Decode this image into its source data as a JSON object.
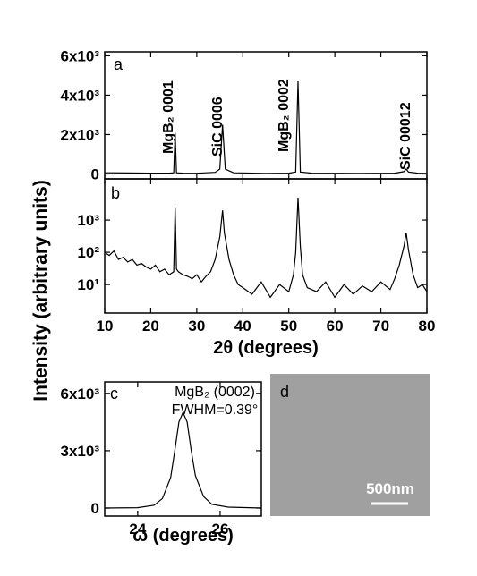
{
  "chart_data": [
    {
      "type": "line",
      "label": "a",
      "ylabel": "Intensity (arbitrary units)",
      "color": "#000000",
      "annotations": [
        "MgB₂ 0001",
        "SiC 0006",
        "MgB₂ 0002",
        "SiC 00012"
      ],
      "x": [
        10,
        15,
        20,
        24,
        25,
        25.3,
        25.6,
        27,
        30,
        34,
        35,
        35.6,
        36.2,
        38,
        45,
        50,
        51.5,
        52,
        52.5,
        55,
        65,
        73,
        75,
        75.5,
        76,
        78,
        80
      ],
      "values": [
        60,
        50,
        40,
        40,
        60,
        2100,
        60,
        40,
        35,
        80,
        250,
        2500,
        250,
        60,
        30,
        40,
        100,
        4700,
        100,
        40,
        30,
        40,
        120,
        250,
        100,
        40,
        30
      ],
      "xlim": [
        10,
        80
      ],
      "xticks": [
        10,
        20,
        30,
        40,
        50,
        60,
        70,
        80
      ],
      "ylim": [
        -250,
        6200
      ],
      "yticks": [
        0,
        {
          "value": 2000,
          "label": "2x10³"
        },
        {
          "value": 4000,
          "label": "4x10³"
        },
        {
          "value": 6000,
          "label": "6x10³"
        }
      ]
    },
    {
      "type": "line",
      "label": "b",
      "xlabel": "2θ (degrees)",
      "color": "#000000",
      "yscale": "log",
      "x": [
        10,
        11,
        12,
        13,
        14,
        15,
        16,
        17,
        18,
        19,
        20,
        21,
        22,
        23,
        24,
        25,
        25.3,
        25.6,
        26,
        27,
        28,
        29,
        30,
        31,
        32,
        33,
        34,
        35,
        35.6,
        36,
        37,
        38,
        39,
        40,
        42,
        44,
        46,
        48,
        50,
        51,
        51.5,
        52,
        52.5,
        53,
        54,
        56,
        58,
        60,
        62,
        64,
        66,
        68,
        70,
        72,
        73,
        74,
        75,
        75.5,
        76,
        77,
        78,
        79,
        80
      ],
      "values": [
        100,
        80,
        110,
        60,
        70,
        50,
        60,
        40,
        45,
        35,
        30,
        40,
        25,
        30,
        20,
        25,
        2500,
        30,
        25,
        20,
        18,
        15,
        20,
        12,
        18,
        25,
        60,
        300,
        2000,
        400,
        60,
        20,
        10,
        8,
        5,
        12,
        4,
        10,
        6,
        20,
        100,
        5000,
        150,
        20,
        8,
        6,
        12,
        4,
        10,
        5,
        9,
        6,
        12,
        7,
        15,
        40,
        150,
        400,
        120,
        20,
        8,
        10,
        6
      ],
      "xlim": [
        10,
        80
      ],
      "xticks": [
        10,
        20,
        30,
        40,
        50,
        60,
        70,
        80
      ],
      "ylim": [
        1.3,
        19000
      ],
      "yticks": [
        {
          "value": 10,
          "label": "10¹"
        },
        {
          "value": 100,
          "label": "10²"
        },
        {
          "value": 1000,
          "label": "10³"
        }
      ]
    },
    {
      "type": "line",
      "label": "c",
      "xlabel": "ω (degrees)",
      "color": "#000000",
      "annotations": [
        "MgB₂ (0002)",
        "FWHM=0.39°"
      ],
      "x": [
        23.2,
        24,
        24.4,
        24.6,
        24.8,
        24.9,
        25,
        25.1,
        25.2,
        25.3,
        25.4,
        25.6,
        25.8,
        26.2,
        27
      ],
      "values": [
        0,
        20,
        150,
        500,
        1600,
        3000,
        4500,
        5000,
        4500,
        3000,
        1700,
        600,
        200,
        50,
        0
      ],
      "xlim": [
        23.2,
        27
      ],
      "xticks": [
        24,
        26
      ],
      "ylim": [
        -420,
        6600
      ],
      "yticks": [
        0,
        {
          "value": 3000,
          "label": "3x10³"
        },
        {
          "value": 6000,
          "label": "6x10³"
        }
      ]
    }
  ],
  "image_panel": {
    "label": "d",
    "scale_bar": "500nm"
  }
}
